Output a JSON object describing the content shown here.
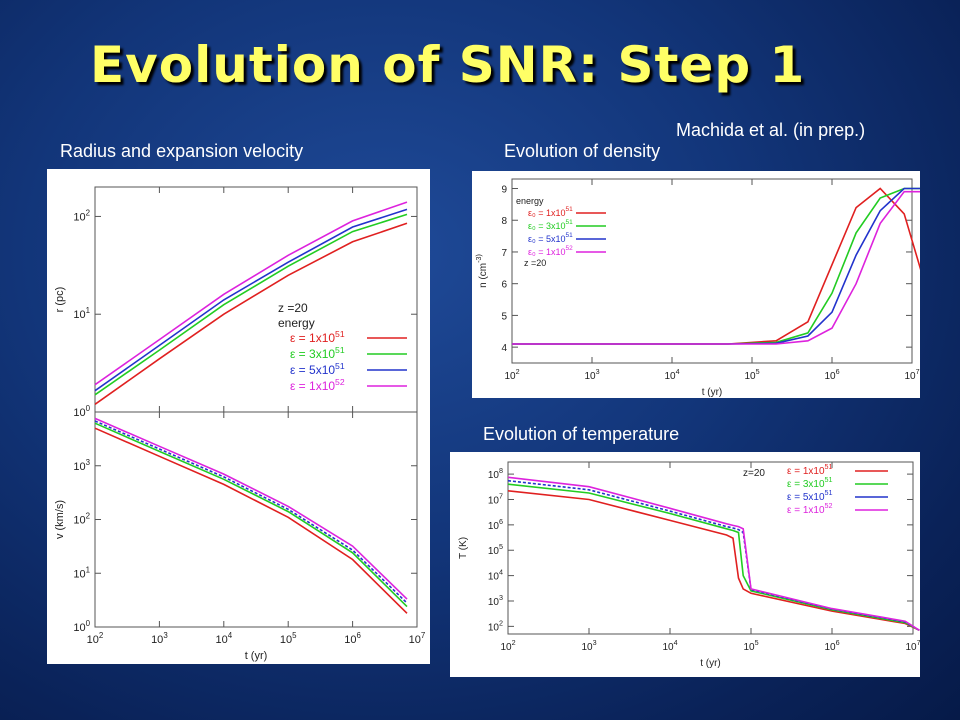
{
  "slide": {
    "title": "Evolution of SNR: Step 1",
    "citation": "Machida et al. (in prep.)",
    "captions": {
      "radius": "Radius and expansion velocity",
      "density": "Evolution of density",
      "temperature": "Evolution of temperature"
    },
    "colors": {
      "title": "#ffff66",
      "background": "#123579",
      "series": [
        "#e02020",
        "#22cc22",
        "#2233cc",
        "#dd22dd"
      ]
    }
  },
  "chart_data": [
    {
      "id": "radius",
      "type": "line",
      "xlabel": "t (yr)",
      "ylabel": "r (pc)",
      "x_log": true,
      "y_log": true,
      "xlim": [
        100,
        10000000
      ],
      "ylim": [
        1,
        200
      ],
      "y_ticks": [
        "10^0",
        "10^1",
        "10^2"
      ],
      "legend": {
        "title": [
          "z =20",
          "energy"
        ],
        "position": "right"
      },
      "x": [
        100,
        1000,
        10000,
        100000,
        1000000,
        7000000
      ],
      "series": [
        {
          "name": "ε = 1x10^51",
          "values": [
            1.2,
            3.5,
            10,
            25,
            55,
            85
          ]
        },
        {
          "name": "ε = 3x10^51",
          "values": [
            1.5,
            4.3,
            12.5,
            31,
            70,
            105
          ]
        },
        {
          "name": "ε = 5x10^51",
          "values": [
            1.65,
            4.8,
            14,
            34,
            78,
            118
          ]
        },
        {
          "name": "ε = 1x10^52",
          "values": [
            1.9,
            5.5,
            16,
            40,
            90,
            140
          ]
        }
      ]
    },
    {
      "id": "velocity",
      "type": "line",
      "xlabel": "t (yr)",
      "ylabel": "v (km/s)",
      "x_log": true,
      "y_log": true,
      "xlim": [
        100,
        10000000
      ],
      "ylim": [
        1,
        10000
      ],
      "x_ticks": [
        "10^2",
        "10^3",
        "10^4",
        "10^5",
        "10^6",
        "10^7"
      ],
      "y_ticks": [
        "10^0",
        "10^1",
        "10^2",
        "10^3"
      ],
      "x": [
        100,
        1000,
        10000,
        100000,
        1000000,
        7000000
      ],
      "series": [
        {
          "name": "ε = 1x10^51",
          "values": [
            5000,
            1500,
            450,
            110,
            18,
            1.8
          ]
        },
        {
          "name": "ε = 3x10^51",
          "values": [
            6200,
            1850,
            560,
            140,
            24,
            2.4
          ]
        },
        {
          "name": "ε = 5x10^51",
          "values": [
            6800,
            2050,
            620,
            155,
            27,
            2.8
          ]
        },
        {
          "name": "ε = 1x10^52",
          "values": [
            7600,
            2300,
            700,
            175,
            32,
            3.3
          ]
        }
      ]
    },
    {
      "id": "density",
      "type": "line",
      "xlabel": "t (yr)",
      "ylabel": "n (cm^-3)",
      "x_log": true,
      "xlim": [
        100,
        10000000
      ],
      "ylim": [
        3.5,
        9.3
      ],
      "x_ticks": [
        "10^2",
        "10^3",
        "10^4",
        "10^5",
        "10^6",
        "10^7"
      ],
      "y_ticks": [
        "4",
        "5",
        "6",
        "7",
        "8",
        "9"
      ],
      "legend": {
        "title": [
          "energy"
        ],
        "note": "z =20",
        "position": "top-left"
      },
      "x": [
        100,
        50000,
        200000,
        500000,
        1000000,
        2000000,
        4000000,
        8000000,
        13000000
      ],
      "series": [
        {
          "name": "ε₀ = 1x10^51",
          "values": [
            4.1,
            4.1,
            4.2,
            4.8,
            6.6,
            8.4,
            9.0,
            8.2,
            6.4
          ]
        },
        {
          "name": "ε₀ = 3x10^51",
          "values": [
            4.1,
            4.1,
            4.15,
            4.45,
            5.7,
            7.6,
            8.7,
            9.0,
            9.0
          ]
        },
        {
          "name": "ε₀ = 5x10^51",
          "values": [
            4.1,
            4.1,
            4.12,
            4.35,
            5.1,
            6.9,
            8.3,
            9.0,
            9.0
          ]
        },
        {
          "name": "ε₀ = 1x10^52",
          "values": [
            4.1,
            4.1,
            4.1,
            4.2,
            4.6,
            6.0,
            7.9,
            8.9,
            8.9
          ]
        }
      ]
    },
    {
      "id": "temperature",
      "type": "line",
      "xlabel": "t (yr)",
      "ylabel": "T (K)",
      "x_log": true,
      "y_log": true,
      "xlim": [
        100,
        10000000
      ],
      "ylim": [
        50,
        300000000
      ],
      "x_ticks": [
        "10^2",
        "10^3",
        "10^4",
        "10^5",
        "10^6",
        "10^7"
      ],
      "y_ticks": [
        "10^2",
        "10^3",
        "10^4",
        "10^5",
        "10^6",
        "10^7",
        "10^8"
      ],
      "legend": {
        "title": [
          "z=20"
        ],
        "position": "top-right"
      },
      "x": [
        100,
        1000,
        10000,
        50000,
        60000,
        70000,
        80000,
        100000,
        1000000,
        8000000,
        12000000
      ],
      "series": [
        {
          "name": "ε = 1x10^51",
          "values": [
            22000000,
            10000000,
            1500000,
            400000,
            300000,
            8000,
            3000,
            2000,
            400,
            130,
            70
          ]
        },
        {
          "name": "ε = 3x10^51",
          "values": [
            40000000,
            18000000,
            2800000,
            700000,
            600000,
            500000,
            10000,
            2500,
            450,
            140,
            70
          ]
        },
        {
          "name": "ε = 5x10^51",
          "values": [
            55000000,
            24000000,
            3500000,
            850000,
            750000,
            650000,
            500000,
            2800,
            480,
            150,
            70
          ]
        },
        {
          "name": "ε = 1x10^52",
          "values": [
            75000000,
            32000000,
            4500000,
            1100000,
            950000,
            850000,
            700000,
            3000,
            500,
            160,
            70
          ]
        }
      ]
    }
  ]
}
